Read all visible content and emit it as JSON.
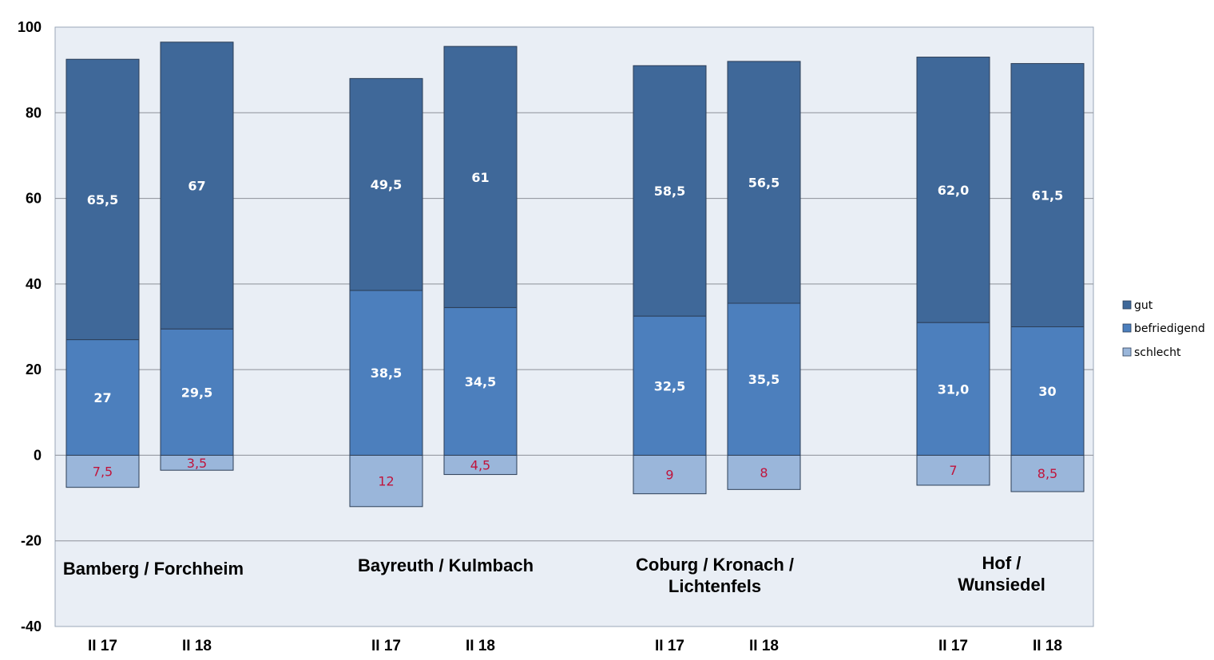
{
  "chart_data": {
    "type": "bar",
    "stacked": true,
    "title": "",
    "xlabel": "",
    "ylabel": "",
    "ylim": [
      -40,
      100
    ],
    "yticks": [
      100,
      80,
      60,
      40,
      20,
      0,
      -20,
      -40
    ],
    "grid": true,
    "legend_position": "right",
    "groups": [
      {
        "label": "Bamberg / Forchheim",
        "lines": [
          "Bamberg / Forchheim"
        ]
      },
      {
        "label": "Bayreuth / Kulmbach",
        "lines": [
          "Bayreuth / Kulmbach"
        ]
      },
      {
        "label": "Coburg / Kronach / Lichtenfels",
        "lines": [
          "Coburg / Kronach /",
          "Lichtenfels"
        ]
      },
      {
        "label": "Hof / Wunsiedel",
        "lines": [
          "Hof /",
          "Wunsiedel"
        ]
      }
    ],
    "categories": [
      "II 17",
      "II 18",
      "II 17",
      "II 18",
      "II 17",
      "II 18",
      "II 17",
      "II 18"
    ],
    "series": [
      {
        "name": "gut",
        "color": "#3f6899",
        "values": [
          65.5,
          67,
          49.5,
          61,
          58.5,
          56.5,
          62.0,
          61.5
        ],
        "labels": [
          "65,5",
          "67",
          "49,5",
          "61",
          "58,5",
          "56,5",
          "62,0",
          "61,5"
        ]
      },
      {
        "name": "befriedigend",
        "color": "#4c7fbd",
        "values": [
          27,
          29.5,
          38.5,
          34.5,
          32.5,
          35.5,
          31.0,
          30
        ],
        "labels": [
          "27",
          "29,5",
          "38,5",
          "34,5",
          "32,5",
          "35,5",
          "31,0",
          "30"
        ]
      },
      {
        "name": "schlecht",
        "color": "#9ab6da",
        "label_color": "#c0143c",
        "values": [
          -7.5,
          -3.5,
          -12,
          -4.5,
          -9,
          -8,
          -7,
          -8.5
        ],
        "labels": [
          "7,5",
          "3,5",
          "12",
          "4,5",
          "9",
          "8",
          "7",
          "8,5"
        ]
      }
    ]
  }
}
